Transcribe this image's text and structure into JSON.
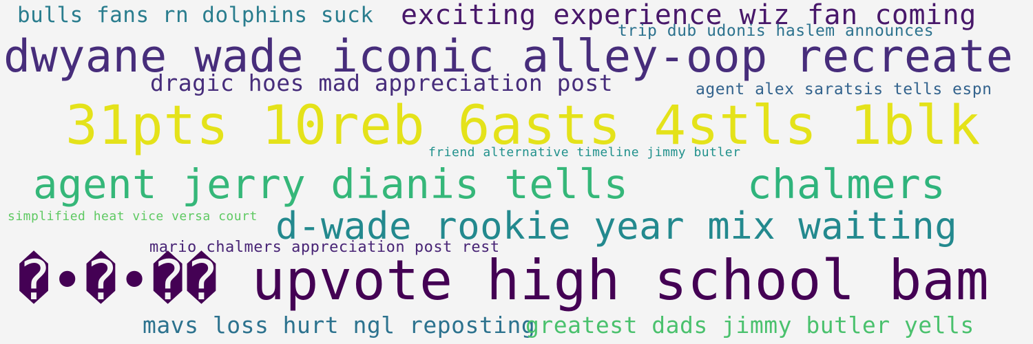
{
  "word_cloud": {
    "phrases": [
      {
        "id": "bulls",
        "text": "bulls fans rn dolphins suck",
        "color": "#2a7d8e"
      },
      {
        "id": "exciting",
        "text": "exciting experience wiz fan coming",
        "color": "#48186a"
      },
      {
        "id": "trip",
        "text": "trip dub udonis haslem announces",
        "color": "#2c728e"
      },
      {
        "id": "dwyane",
        "text": "dwyane wade iconic alley-oop recreate",
        "color": "#472d7b"
      },
      {
        "id": "dragic",
        "text": "dragic hoes mad appreciation post",
        "color": "#472d7b"
      },
      {
        "id": "agent-alex",
        "text": "agent alex saratsis tells espn",
        "color": "#33638d"
      },
      {
        "id": "stats",
        "text": "31pts 10reb 6asts 4stls 1blk",
        "color": "#e4e21a"
      },
      {
        "id": "friend",
        "text": "friend alternative timeline jimmy butler",
        "color": "#21918c"
      },
      {
        "id": "agent-jerry",
        "text": "agent jerry dianis tells",
        "color": "#35b779"
      },
      {
        "id": "chalmers",
        "text": "chalmers",
        "color": "#2fb47c"
      },
      {
        "id": "simplified",
        "text": "simplified heat vice versa court",
        "color": "#5ec962"
      },
      {
        "id": "dwade",
        "text": "d-wade rookie year mix waiting",
        "color": "#23898e"
      },
      {
        "id": "mario",
        "text": "mario chalmers appreciation post rest",
        "color": "#482475"
      },
      {
        "id": "upvote",
        "text": "�•�•�� upvote high school bam",
        "color": "#440154"
      },
      {
        "id": "mavs",
        "text": "mavs loss hurt ngl reposting",
        "color": "#2c728e"
      },
      {
        "id": "greatest",
        "text": "greatest dads jimmy butler yells",
        "color": "#4ac16d"
      }
    ]
  }
}
